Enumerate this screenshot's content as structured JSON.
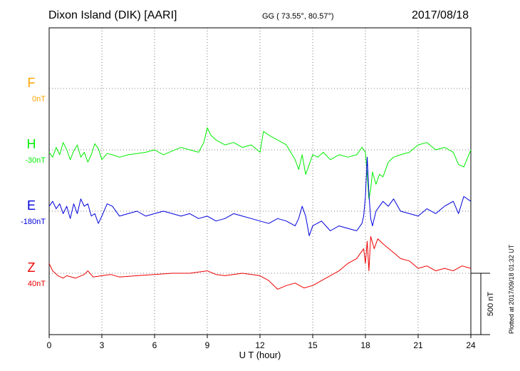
{
  "header": {
    "station": "Dixon Island (DIK)  [AARI]",
    "coords": "GG ( 73.55°,  80.57°)",
    "date": "2017/08/18"
  },
  "footer_note": "Plotted at 2017/09/18 01:32 UT",
  "chart_data": {
    "type": "line",
    "title": "Dixon Island (DIK)  [AARI]",
    "xlabel": "U T (hour)",
    "xlim": [
      0,
      24
    ],
    "x_ticks": [
      "0",
      "3",
      "6",
      "9",
      "12",
      "15",
      "18",
      "21",
      "24"
    ],
    "grid": true,
    "scale_bar_label": "500 nT",
    "colors": {
      "F": "#ffa500",
      "H": "#00ee00",
      "E": "#0000dd",
      "Z": "#ee0000"
    },
    "channels": [
      {
        "letter": "F",
        "baseline_label": "0nT"
      },
      {
        "letter": "H",
        "baseline_label": "-30nT"
      },
      {
        "letter": "E",
        "baseline_label": "-180nT"
      },
      {
        "letter": "Z",
        "baseline_label": "40nT"
      }
    ],
    "series": [
      {
        "name": "H",
        "x": [
          0.0,
          0.2,
          0.4,
          0.6,
          0.8,
          1.0,
          1.2,
          1.4,
          1.6,
          1.8,
          2.0,
          2.2,
          2.4,
          2.6,
          2.8,
          3.0,
          3.3,
          3.6,
          4.0,
          4.5,
          5.0,
          5.5,
          6.0,
          6.5,
          7.0,
          7.5,
          8.0,
          8.5,
          8.8,
          9.0,
          9.2,
          9.5,
          10.0,
          10.5,
          11.0,
          11.5,
          12.0,
          12.2,
          12.5,
          13.0,
          13.5,
          14.0,
          14.2,
          14.4,
          14.6,
          14.8,
          15.0,
          15.3,
          15.6,
          16.0,
          16.5,
          17.0,
          17.5,
          17.8,
          18.0,
          18.1,
          18.2,
          18.3,
          18.4,
          18.6,
          18.8,
          19.0,
          19.3,
          19.6,
          20.0,
          20.5,
          21.0,
          21.5,
          22.0,
          22.5,
          23.0,
          23.3,
          23.6,
          24.0
        ],
        "values": [
          -20,
          -60,
          20,
          -40,
          60,
          0,
          -80,
          -10,
          40,
          -60,
          -20,
          -100,
          -40,
          50,
          10,
          -80,
          -30,
          -40,
          -60,
          -40,
          -30,
          -20,
          0,
          -40,
          -10,
          20,
          0,
          -20,
          60,
          180,
          120,
          80,
          40,
          60,
          20,
          40,
          -20,
          150,
          120,
          80,
          40,
          -80,
          -160,
          -40,
          -200,
          -120,
          -40,
          -60,
          -20,
          -80,
          -40,
          -60,
          -40,
          20,
          -20,
          -200,
          -400,
          -320,
          -180,
          -280,
          -200,
          -220,
          -100,
          -60,
          -40,
          -20,
          40,
          60,
          0,
          20,
          -20,
          -120,
          -140,
          0
        ]
      },
      {
        "name": "E",
        "x": [
          0.0,
          0.2,
          0.4,
          0.6,
          0.8,
          1.0,
          1.2,
          1.4,
          1.6,
          1.8,
          2.0,
          2.2,
          2.4,
          2.6,
          2.8,
          3.0,
          3.3,
          3.6,
          4.0,
          4.5,
          5.0,
          5.5,
          6.0,
          6.5,
          7.0,
          7.5,
          8.0,
          8.5,
          9.0,
          9.5,
          10.0,
          10.5,
          11.0,
          11.5,
          12.0,
          12.5,
          13.0,
          13.5,
          14.0,
          14.2,
          14.4,
          14.6,
          14.8,
          15.0,
          15.5,
          16.0,
          16.5,
          17.0,
          17.5,
          17.8,
          17.9,
          18.0,
          18.1,
          18.2,
          18.3,
          18.4,
          18.6,
          18.8,
          19.0,
          19.3,
          19.6,
          20.0,
          20.5,
          21.0,
          21.5,
          22.0,
          22.5,
          23.0,
          23.3,
          23.6,
          24.0
        ],
        "values": [
          40,
          80,
          20,
          60,
          -20,
          40,
          -60,
          60,
          -20,
          100,
          40,
          60,
          -40,
          -20,
          -100,
          -40,
          60,
          40,
          -40,
          -20,
          0,
          -40,
          -20,
          0,
          -20,
          -40,
          -20,
          -60,
          -40,
          -80,
          -60,
          -20,
          -40,
          -60,
          -80,
          -100,
          -60,
          -80,
          -120,
          -60,
          40,
          -40,
          -200,
          -120,
          -80,
          -160,
          -120,
          -140,
          -160,
          -100,
          -40,
          120,
          440,
          140,
          -60,
          -120,
          0,
          40,
          80,
          40,
          100,
          0,
          -20,
          -40,
          20,
          -20,
          40,
          80,
          -20,
          120,
          80
        ]
      },
      {
        "name": "Z",
        "x": [
          0.0,
          0.2,
          0.5,
          0.8,
          1.0,
          1.5,
          2.0,
          2.2,
          2.5,
          3.0,
          3.5,
          4.0,
          5.0,
          6.0,
          7.0,
          8.0,
          9.0,
          9.5,
          10.0,
          11.0,
          12.0,
          12.5,
          13.0,
          13.5,
          14.0,
          14.5,
          15.0,
          15.5,
          16.0,
          16.5,
          17.0,
          17.5,
          17.9,
          18.0,
          18.1,
          18.2,
          18.3,
          18.5,
          18.7,
          19.0,
          19.5,
          20.0,
          20.5,
          21.0,
          21.5,
          22.0,
          22.5,
          23.0,
          23.5,
          24.0
        ],
        "values": [
          80,
          20,
          -20,
          -40,
          -20,
          -40,
          -10,
          20,
          -30,
          -20,
          -10,
          -30,
          -20,
          -10,
          0,
          0,
          20,
          -10,
          -20,
          0,
          -20,
          -60,
          -130,
          -100,
          -80,
          -120,
          -100,
          -60,
          -20,
          20,
          80,
          120,
          200,
          80,
          260,
          20,
          300,
          200,
          280,
          240,
          180,
          120,
          100,
          40,
          60,
          20,
          40,
          20,
          60,
          40
        ]
      }
    ]
  }
}
